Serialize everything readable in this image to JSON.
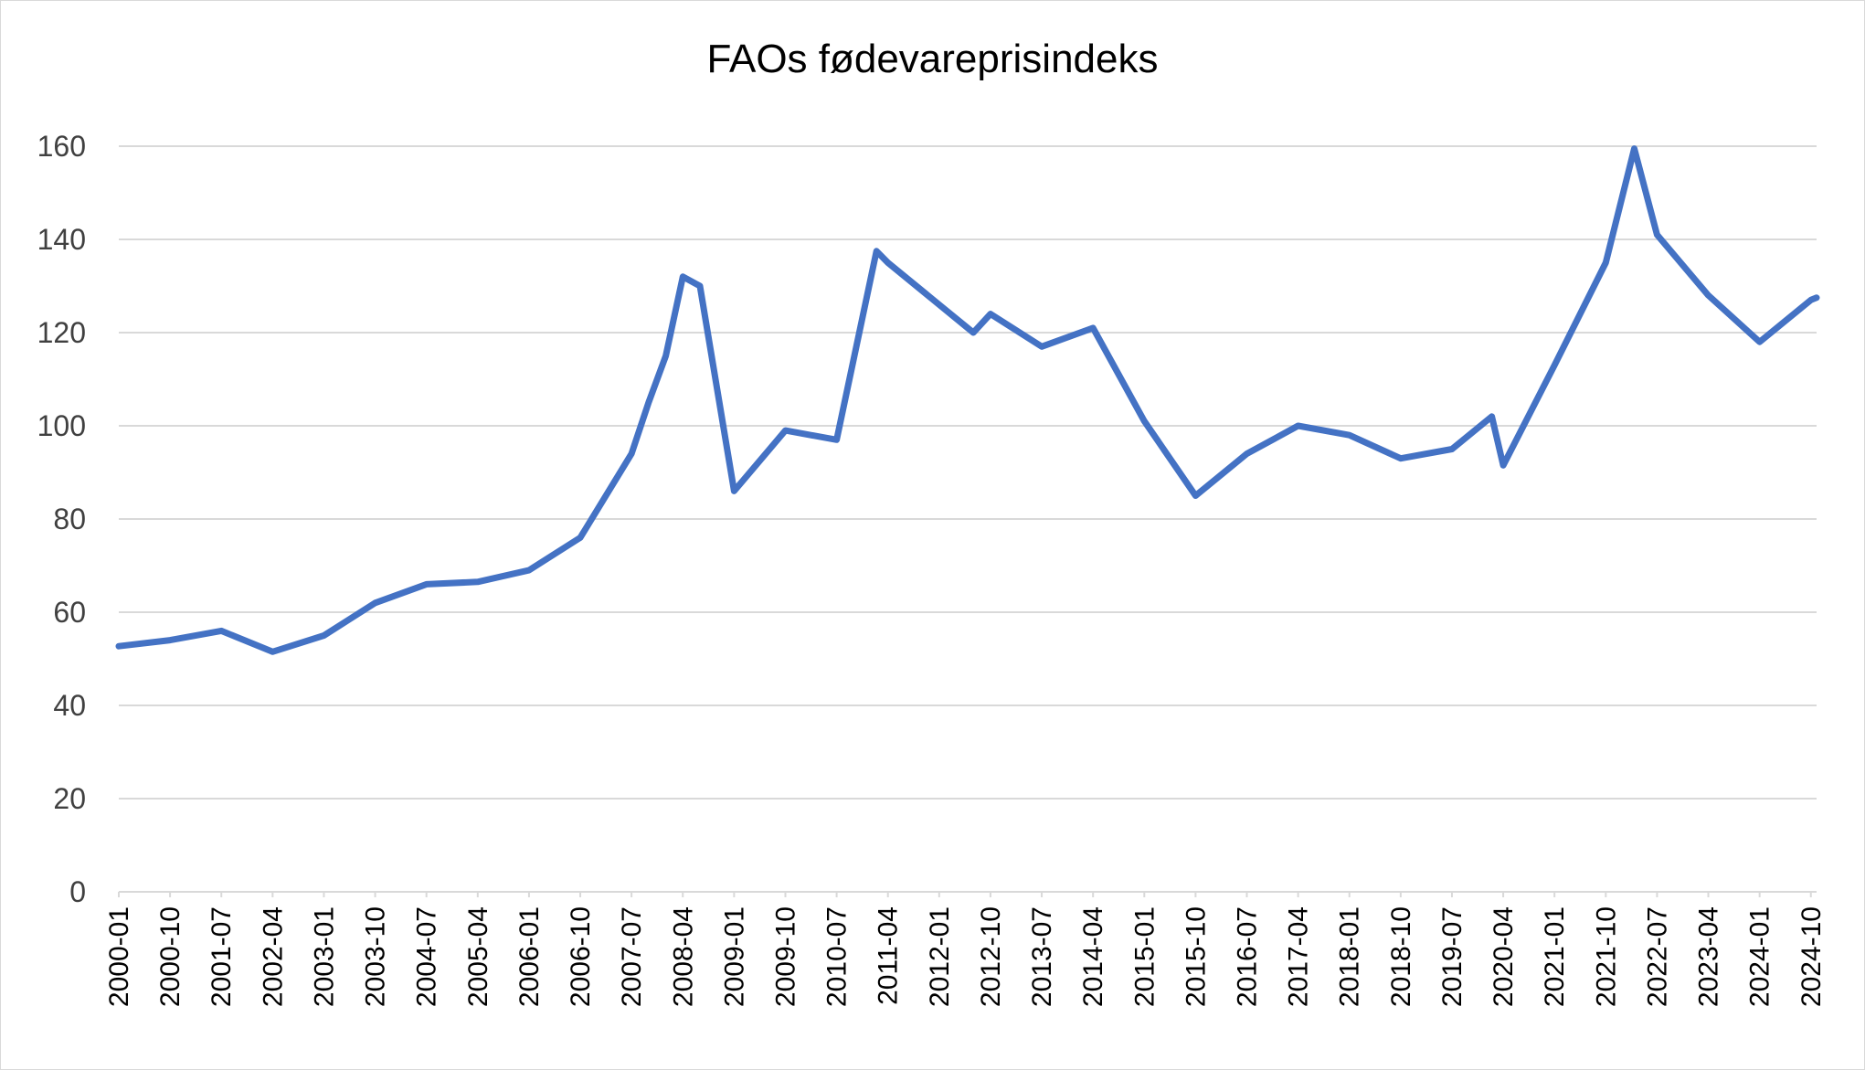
{
  "chart_data": {
    "type": "line",
    "title": "FAOs fødevareprisindeks",
    "xlabel": "",
    "ylabel": "",
    "ylim": [
      0,
      160
    ],
    "yticks": [
      "0",
      "20",
      "40",
      "60",
      "80",
      "100",
      "120",
      "140",
      "160"
    ],
    "x_tick_labels": [
      "2000-01",
      "2000-10",
      "2001-07",
      "2002-04",
      "2003-01",
      "2003-10",
      "2004-07",
      "2005-04",
      "2006-01",
      "2006-10",
      "2007-07",
      "2008-04",
      "2009-01",
      "2009-10",
      "2010-07",
      "2011-04",
      "2012-01",
      "2012-10",
      "2013-07",
      "2014-04",
      "2015-01",
      "2015-10",
      "2016-07",
      "2017-04",
      "2018-01",
      "2018-10",
      "2019-07",
      "2020-04",
      "2021-01",
      "2021-10",
      "2022-07",
      "2023-04",
      "2024-01",
      "2024-10"
    ],
    "grid": true,
    "line_color": "#4472C4",
    "series": [
      {
        "x": [
          "2000-01",
          "2000-10",
          "2001-07",
          "2002-04",
          "2003-01",
          "2003-10",
          "2004-07",
          "2005-04",
          "2006-01",
          "2006-10",
          "2007-07",
          "2007-10",
          "2008-01",
          "2008-04",
          "2008-07",
          "2009-01",
          "2009-10",
          "2010-07",
          "2011-02",
          "2011-04",
          "2012-01",
          "2012-07",
          "2012-10",
          "2013-07",
          "2014-04",
          "2015-01",
          "2015-10",
          "2016-07",
          "2017-04",
          "2018-01",
          "2018-10",
          "2019-07",
          "2020-02",
          "2020-04",
          "2021-01",
          "2021-10",
          "2022-03",
          "2022-07",
          "2023-04",
          "2024-01",
          "2024-10",
          "2024-11"
        ],
        "values": [
          52.7,
          54.0,
          56.0,
          51.5,
          55.0,
          62.0,
          66.0,
          66.5,
          69.0,
          76.0,
          94.0,
          105.0,
          115.0,
          132.0,
          130.0,
          86.0,
          99.0,
          97.0,
          137.5,
          135.0,
          126.0,
          120.0,
          124.0,
          117.0,
          121.0,
          101.0,
          85.0,
          94.0,
          100.0,
          98.0,
          93.0,
          95.0,
          102.0,
          91.5,
          113.0,
          135.0,
          159.5,
          141.0,
          128.0,
          118.0,
          127.0,
          127.5
        ]
      }
    ]
  }
}
